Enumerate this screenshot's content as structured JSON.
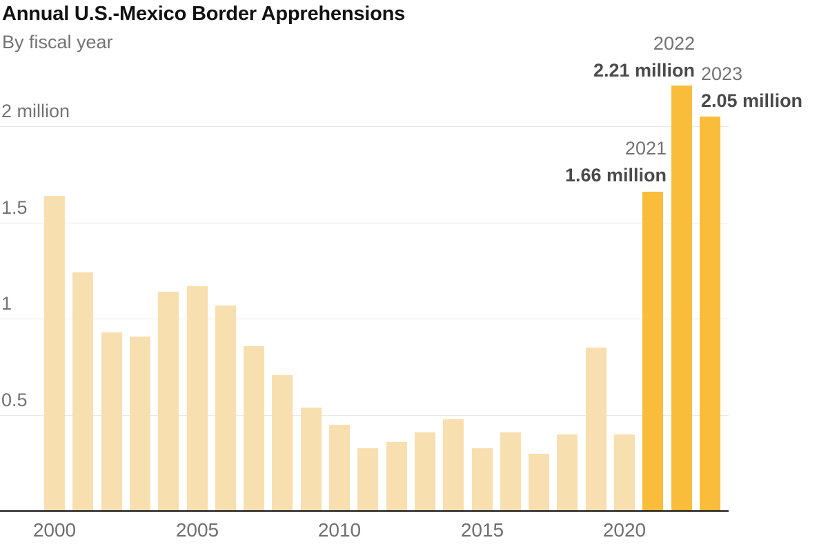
{
  "header": {
    "title": "Annual U.S.-Mexico Border Apprehensions",
    "subtitle": "By fiscal year"
  },
  "chart_data": {
    "type": "bar",
    "title": "Annual U.S.-Mexico Border Apprehensions",
    "subtitle": "By fiscal year",
    "unit": "million",
    "categories": [
      2000,
      2001,
      2002,
      2003,
      2004,
      2005,
      2006,
      2007,
      2008,
      2009,
      2010,
      2011,
      2012,
      2013,
      2014,
      2015,
      2016,
      2017,
      2018,
      2019,
      2020,
      2021,
      2022,
      2023
    ],
    "values": [
      1.64,
      1.24,
      0.93,
      0.91,
      1.14,
      1.17,
      1.07,
      0.86,
      0.71,
      0.54,
      0.45,
      0.33,
      0.36,
      0.41,
      0.48,
      0.33,
      0.41,
      0.3,
      0.4,
      0.85,
      0.4,
      1.66,
      2.21,
      2.05
    ],
    "highlighted_years": [
      2021,
      2022,
      2023
    ],
    "bar_color": "#F8DFAF",
    "highlight_color": "#F9BD3B",
    "gridline_color": "#e8e8e8",
    "axis_color": "#121212",
    "ylim": [
      0,
      2.3
    ],
    "ytick_values": [
      0.5,
      1,
      1.5,
      2
    ],
    "ytick_labels": [
      "0.5",
      "1",
      "1.5",
      "2 million"
    ],
    "xtick_years": [
      2000,
      2005,
      2010,
      2015,
      2020
    ],
    "xtick_labels": [
      "2000",
      "2005",
      "2010",
      "2015",
      "2020"
    ],
    "legend": "none",
    "grid": "horizontal",
    "annotations": [
      {
        "year": "2021",
        "value_label": "1.66 million"
      },
      {
        "year": "2022",
        "value_label": "2.21 million"
      },
      {
        "year": "2023",
        "value_label": "2.05 million"
      }
    ]
  }
}
